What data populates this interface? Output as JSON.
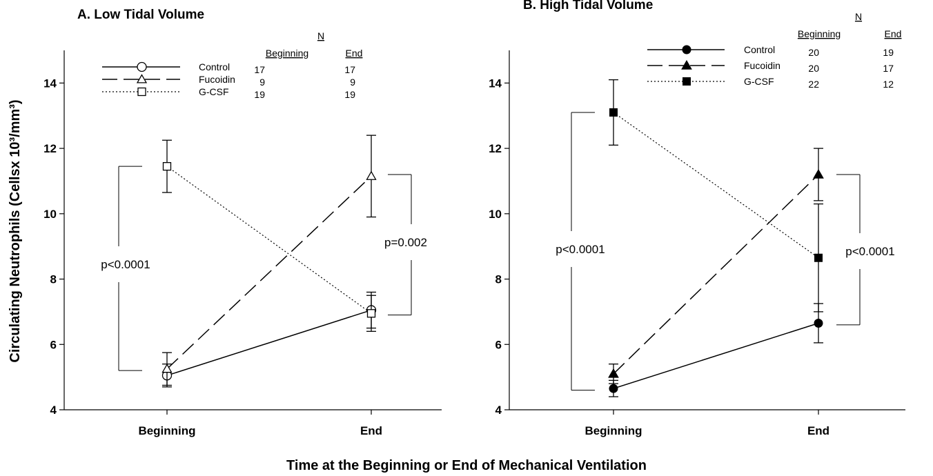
{
  "x_axis_title": "Time at the Beginning or End of Mechanical Ventilation",
  "y_axis_title": "Circulating Neutrophils (Cellsx 10³/mm³)",
  "chart_data": [
    {
      "type": "line",
      "title": "A. Low Tidal Volume",
      "categories": [
        "Beginning",
        "End"
      ],
      "ylim": [
        4,
        15
      ],
      "yticks": [
        4,
        6,
        8,
        10,
        12,
        14
      ],
      "series": [
        {
          "name": "Control",
          "values": [
            5.05,
            7.05
          ],
          "errors": [
            0.35,
            0.55
          ],
          "marker": "circle",
          "filled": false,
          "dash": "solid"
        },
        {
          "name": "Fucoidin",
          "values": [
            5.25,
            11.15
          ],
          "errors": [
            0.5,
            1.25
          ],
          "marker": "triangle",
          "filled": false,
          "dash": "dashed"
        },
        {
          "name": "G-CSF",
          "values": [
            11.45,
            6.95
          ],
          "errors": [
            0.8,
            0.55
          ],
          "marker": "square",
          "filled": false,
          "dash": "dotted"
        }
      ],
      "legend": {
        "n_header": "N",
        "col_headers": [
          "Beginning",
          "End"
        ],
        "rows": [
          {
            "label": "Control",
            "beginning": "17",
            "end": "17"
          },
          {
            "label": "Fucoidin",
            "beginning": "9",
            "end": "9"
          },
          {
            "label": "G-CSF",
            "beginning": "19",
            "end": "19"
          }
        ]
      },
      "annotations": [
        {
          "text": "p<0.0001",
          "position": "left",
          "y_range": [
            5.2,
            11.45
          ]
        },
        {
          "text": "p=0.002",
          "position": "right",
          "y_range": [
            6.9,
            11.2
          ]
        }
      ]
    },
    {
      "type": "line",
      "title": "B. High Tidal Volume",
      "categories": [
        "Beginning",
        "End"
      ],
      "ylim": [
        4,
        15
      ],
      "yticks": [
        4,
        6,
        8,
        10,
        12,
        14
      ],
      "series": [
        {
          "name": "Control",
          "values": [
            4.65,
            6.65
          ],
          "errors": [
            0.25,
            0.6
          ],
          "marker": "circle",
          "filled": true,
          "dash": "solid"
        },
        {
          "name": "Fucoidin",
          "values": [
            5.1,
            11.2
          ],
          "errors": [
            0.3,
            0.8
          ],
          "marker": "triangle",
          "filled": true,
          "dash": "dashed"
        },
        {
          "name": "G-CSF",
          "values": [
            13.1,
            8.65
          ],
          "errors": [
            1.0,
            1.65
          ],
          "marker": "square",
          "filled": true,
          "dash": "dotted"
        }
      ],
      "legend": {
        "n_header": "N",
        "col_headers": [
          "Beginning",
          "End"
        ],
        "rows": [
          {
            "label": "Control",
            "beginning": "20",
            "end": "19"
          },
          {
            "label": "Fucoidin",
            "beginning": "20",
            "end": "17"
          },
          {
            "label": "G-CSF",
            "beginning": "22",
            "end": "12"
          }
        ]
      },
      "annotations": [
        {
          "text": "p<0.0001",
          "position": "left",
          "y_range": [
            4.6,
            13.1
          ]
        },
        {
          "text": "p<0.0001",
          "position": "right",
          "y_range": [
            6.6,
            11.2
          ]
        }
      ]
    }
  ]
}
